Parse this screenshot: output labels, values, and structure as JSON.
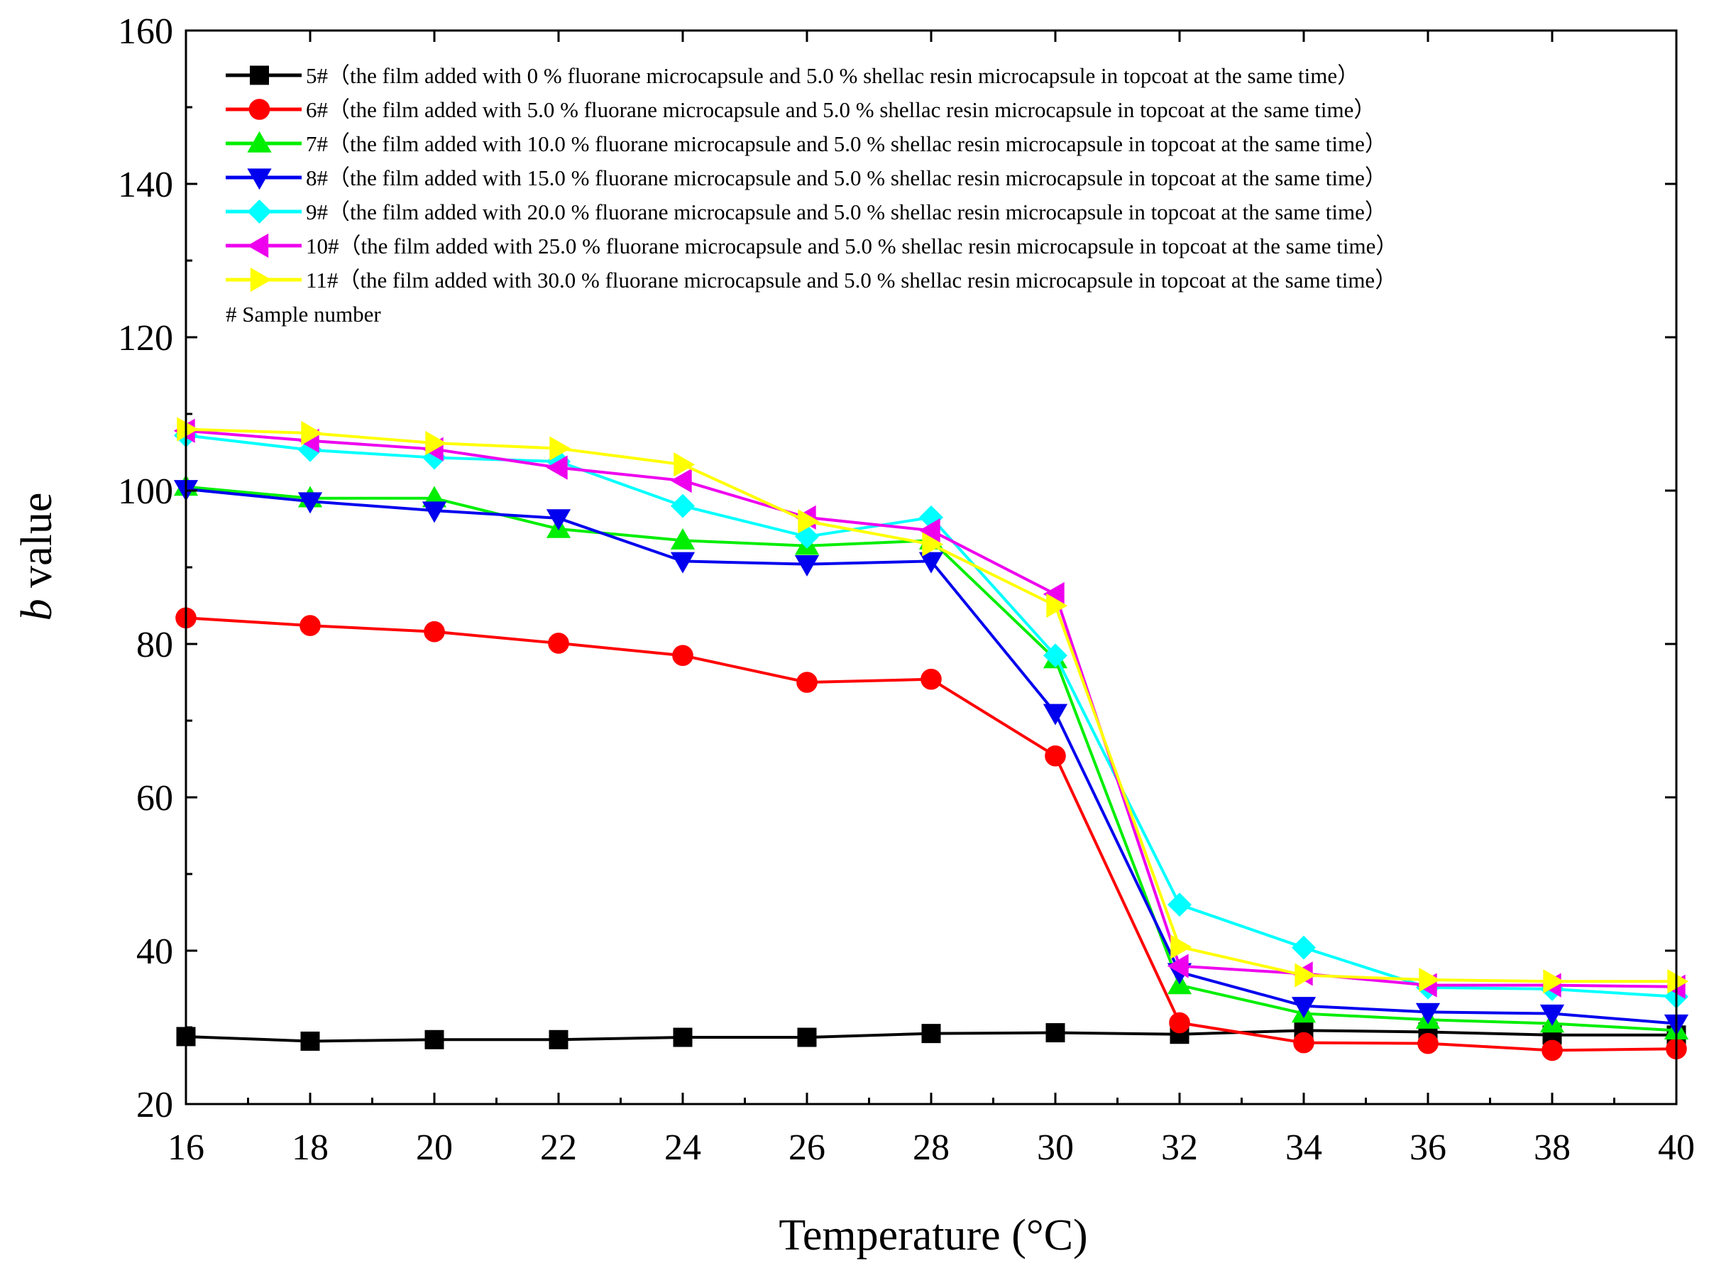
{
  "chart_data": {
    "type": "line",
    "title": "",
    "xlabel": "Temperature (°C)",
    "ylabel_italic": "b",
    "ylabel_rest": " value",
    "xlim": [
      16,
      40
    ],
    "ylim": [
      20,
      160
    ],
    "x_ticks": [
      16,
      18,
      20,
      22,
      24,
      26,
      28,
      30,
      32,
      34,
      36,
      38,
      40
    ],
    "y_ticks": [
      20,
      40,
      60,
      80,
      100,
      120,
      140,
      160
    ],
    "legend_position": "top-left",
    "legend_note": "# Sample number",
    "x": [
      16,
      18,
      20,
      22,
      24,
      26,
      28,
      30,
      32,
      34,
      36,
      38,
      40
    ],
    "series": [
      {
        "name": "5#（the film added with 0 % fluorane microcapsule and 5.0 % shellac resin microcapsule in topcoat at the same time）",
        "color": "#000000",
        "marker": "square",
        "values": [
          28.8,
          28.2,
          28.4,
          28.4,
          28.7,
          28.7,
          29.2,
          29.3,
          29.1,
          29.6,
          29.4,
          29.0,
          29.0
        ]
      },
      {
        "name": "6#（the film added with 5.0 % fluorane microcapsule and 5.0 % shellac resin microcapsule in topcoat at the same time）",
        "color": "#ff0000",
        "marker": "circle",
        "values": [
          83.4,
          82.4,
          81.6,
          80.1,
          78.5,
          75.0,
          75.4,
          65.4,
          30.6,
          28.0,
          27.9,
          27.0,
          27.2
        ]
      },
      {
        "name": "7#（the film added with 10.0 % fluorane microcapsule and 5.0 % shellac resin microcapsule in topcoat at the same time）",
        "color": "#00ee00",
        "marker": "triangle-up",
        "values": [
          100.5,
          99.0,
          99.0,
          95.0,
          93.5,
          92.8,
          93.5,
          78.0,
          35.5,
          31.8,
          31.0,
          30.5,
          29.6
        ]
      },
      {
        "name": "8#（the film added with 15.0 % fluorane microcapsule and 5.0 % shellac resin microcapsule in topcoat at the same time）",
        "color": "#0000ee",
        "marker": "triangle-down",
        "values": [
          100.2,
          98.6,
          97.4,
          96.4,
          90.8,
          90.4,
          90.8,
          71.0,
          37.2,
          32.8,
          32.0,
          31.8,
          30.5
        ]
      },
      {
        "name": "9#（the film added with 20.0 % fluorane microcapsule and 5.0 % shellac resin microcapsule in topcoat at the same time）",
        "color": "#00ffff",
        "marker": "diamond",
        "values": [
          107.2,
          105.3,
          104.3,
          103.8,
          98.0,
          94.0,
          96.5,
          78.5,
          46.0,
          40.4,
          35.2,
          35.0,
          34.0
        ]
      },
      {
        "name": "10#（the film added with 25.0 % fluorane microcapsule and 5.0 % shellac resin microcapsule in topcoat at the same time）",
        "color": "#ee00ee",
        "marker": "triangle-left",
        "values": [
          107.8,
          106.5,
          105.4,
          103.0,
          101.3,
          96.5,
          94.8,
          86.5,
          38.0,
          37.0,
          35.5,
          35.5,
          35.3
        ]
      },
      {
        "name": "11#（the film added with 30.0 % fluorane microcapsule and 5.0 % shellac resin microcapsule in topcoat at the same time）",
        "color": "#ffff00",
        "marker": "triangle-right",
        "values": [
          108.0,
          107.5,
          106.2,
          105.5,
          103.4,
          96.0,
          93.0,
          85.0,
          40.5,
          36.8,
          36.2,
          36.0,
          36.0
        ]
      }
    ]
  }
}
